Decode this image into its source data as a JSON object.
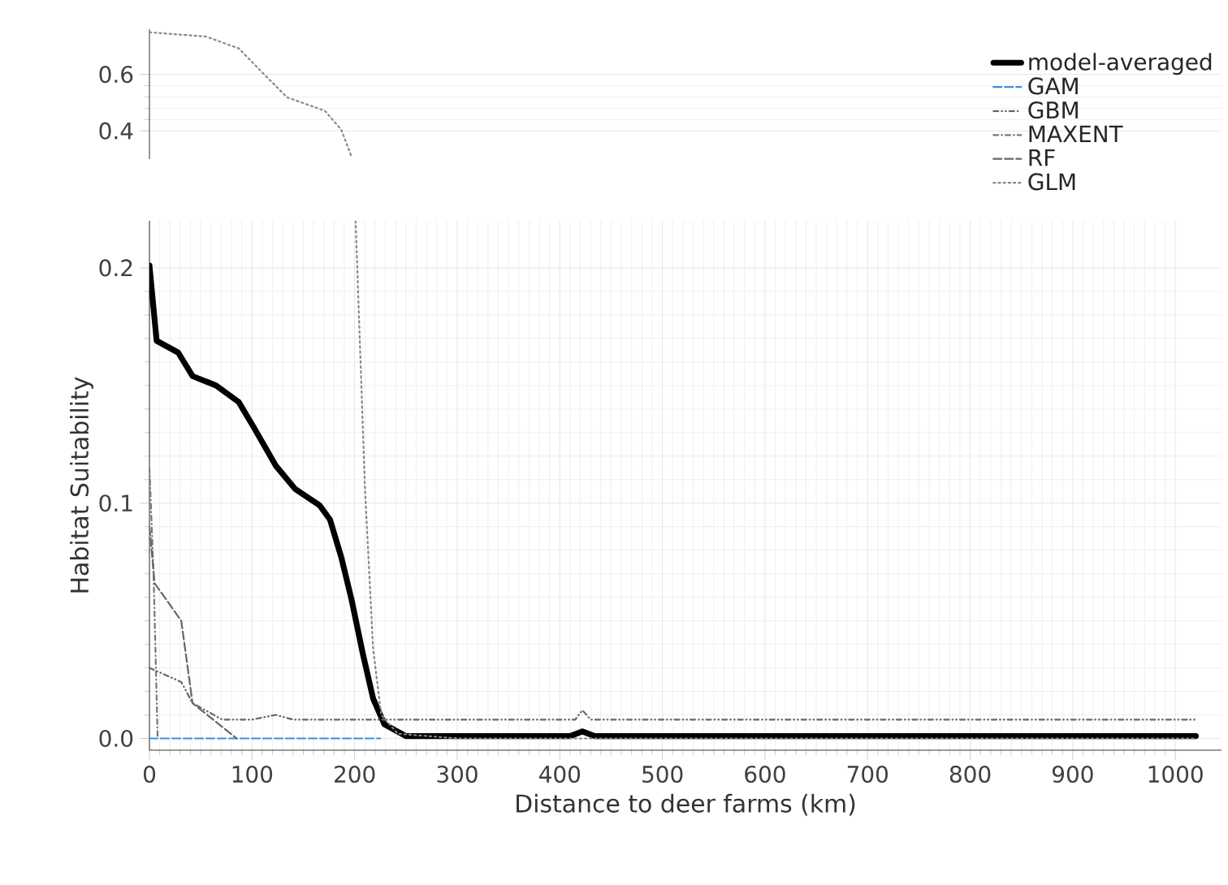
{
  "chart_data": [
    {
      "type": "line",
      "ylim": [
        0.3,
        0.76
      ],
      "yticks": [
        0.4,
        0.6
      ],
      "xlim": [
        0,
        1045
      ],
      "tick_labels": "y",
      "grid": true,
      "series": [
        {
          "color": "#888888",
          "line_style": "dotted",
          "x": [
            0,
            55,
            87,
            113,
            134,
            171,
            187,
            197
          ],
          "values": [
            0.749,
            0.734,
            0.692,
            0.596,
            0.519,
            0.471,
            0.404,
            0.308
          ]
        }
      ]
    },
    {
      "type": "line",
      "xlabel": "Distance to deer farms (km)",
      "ylabel": "Habitat Suitability",
      "xlim": [
        0,
        1045
      ],
      "ylim": [
        -0.005,
        0.22
      ],
      "xticks": [
        0,
        100,
        200,
        300,
        400,
        500,
        600,
        700,
        800,
        900,
        1000
      ],
      "yticks": [
        {
          "value": 0,
          "label": "0.0"
        },
        0.1,
        0.2
      ],
      "grid": true,
      "legend": "top right",
      "series": [
        {
          "name": "model-averaged",
          "color": "#000000",
          "line_style": "solid",
          "x": [
            0,
            7,
            28,
            42,
            65,
            87,
            102,
            123,
            142,
            166,
            176,
            187,
            197,
            208,
            218,
            229,
            250,
            410,
            422,
            434,
            1020
          ],
          "values": [
            0.201,
            0.169,
            0.164,
            0.154,
            0.15,
            0.143,
            0.132,
            0.116,
            0.106,
            0.099,
            0.093,
            0.077,
            0.059,
            0.036,
            0.017,
            0.006,
            0.001,
            0.001,
            0.003,
            0.001,
            0.001
          ]
        },
        {
          "name": "GAM",
          "color": "#3d8fe0",
          "line_style": "dashed",
          "x": [
            0,
            225
          ],
          "values": [
            0,
            0
          ]
        },
        {
          "name": "GBM",
          "color": "#666666",
          "line_style": "dashdotdot",
          "x": [
            0,
            31,
            42,
            71,
            100,
            123,
            140,
            415,
            422,
            430,
            1020
          ],
          "values": [
            0.03,
            0.024,
            0.015,
            0.008,
            0.008,
            0.01,
            0.008,
            0.008,
            0.012,
            0.008,
            0.008
          ]
        },
        {
          "name": "MAXENT",
          "color": "#777777",
          "line_style": "dashdot",
          "x": [
            0,
            4,
            8
          ],
          "values": [
            0.115,
            0.07,
            0
          ]
        },
        {
          "name": "RF",
          "color": "#666666",
          "line_style": "dashed",
          "x": [
            0,
            5,
            31,
            42,
            85
          ],
          "values": [
            0.09,
            0.066,
            0.05,
            0.015,
            0
          ]
        },
        {
          "name": "GLM",
          "color": "#888888",
          "line_style": "dotted",
          "x": [
            201,
            210,
            218,
            226,
            242,
            300,
            1020
          ],
          "values": [
            0.22,
            0.107,
            0.038,
            0.01,
            0.002,
            0,
            0
          ]
        }
      ]
    }
  ]
}
